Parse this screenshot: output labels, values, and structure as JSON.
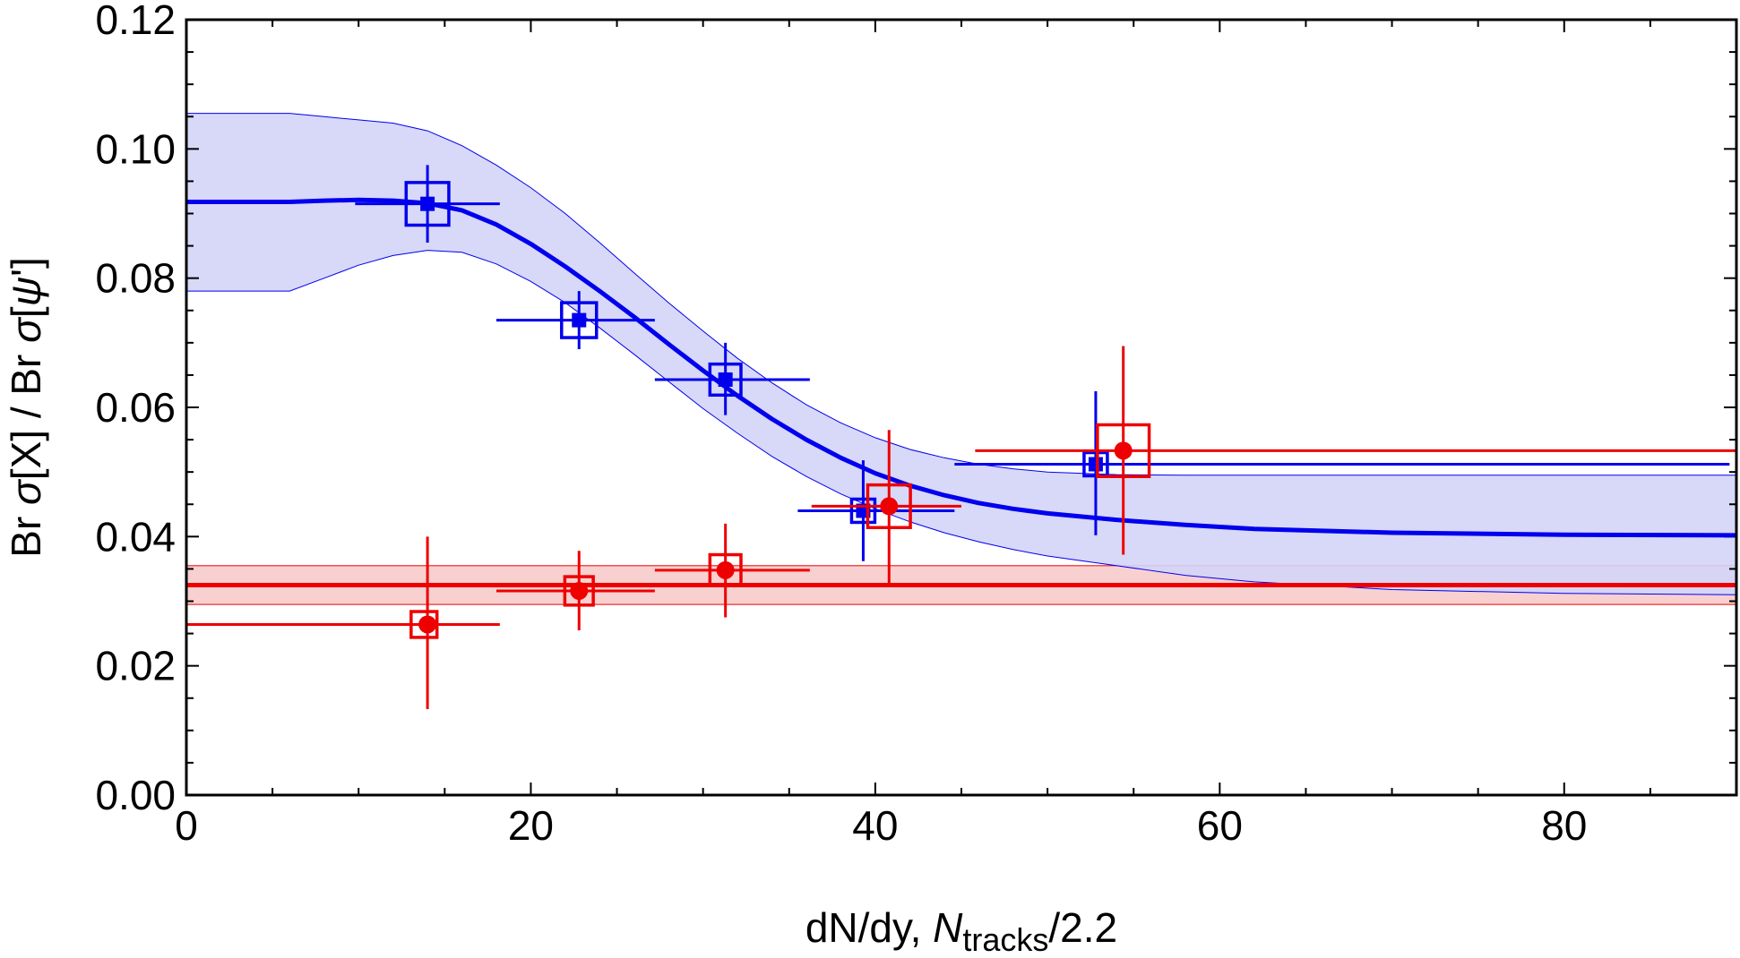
{
  "chart_data": {
    "type": "scatter",
    "title": "",
    "xlabel": {
      "prefix": "dN/dy, ",
      "var": "N",
      "sub": "tracks",
      "suffix": "/2.2"
    },
    "ylabel": {
      "part1": "Br ",
      "sigma1": "σ",
      "part2": "[X] / Br ",
      "sigma2": "σ",
      "part3": "[",
      "psi": "ψ",
      "part4": "']"
    },
    "xlim": [
      0,
      90
    ],
    "ylim": [
      0,
      0.12
    ],
    "x_ticks": [
      "0",
      "20",
      "40",
      "60",
      "80"
    ],
    "x_tick_values": [
      0,
      20,
      40,
      60,
      80
    ],
    "y_ticks": [
      "0.00",
      "0.02",
      "0.04",
      "0.06",
      "0.08",
      "0.10",
      "0.12"
    ],
    "y_tick_values": [
      0,
      0.02,
      0.04,
      0.06,
      0.08,
      0.1,
      0.12
    ],
    "grid": false,
    "legend": "none",
    "colors": {
      "blue": "#0000ee",
      "blue_band": "#d4d4f7",
      "red": "#ee0000",
      "red_band": "#f7c8c8"
    },
    "series": [
      {
        "color": "blue",
        "marker": "filled-square",
        "points": [
          {
            "x": 14.0,
            "y": 0.0915,
            "xlo": 9.8,
            "xhi": 18.2,
            "ylo": 0.0855,
            "yhi": 0.0975,
            "box_x": 14.0,
            "box_y": 0.0915,
            "box_dy": 0.0033
          },
          {
            "x": 22.8,
            "y": 0.0735,
            "xlo": 18.0,
            "xhi": 27.2,
            "ylo": 0.069,
            "yhi": 0.078,
            "box_x": 22.8,
            "box_y": 0.0735,
            "box_dy": 0.0027
          },
          {
            "x": 31.3,
            "y": 0.0643,
            "xlo": 27.2,
            "xhi": 36.2,
            "ylo": 0.0588,
            "yhi": 0.07,
            "box_x": 31.3,
            "box_y": 0.0643,
            "box_dy": 0.0024
          },
          {
            "x": 39.3,
            "y": 0.044,
            "xlo": 35.5,
            "xhi": 44.6,
            "ylo": 0.0362,
            "yhi": 0.0518,
            "box_x": 39.3,
            "box_y": 0.044,
            "box_dy": 0.0018
          },
          {
            "x": 52.8,
            "y": 0.0512,
            "xlo": 44.6,
            "xhi": 89.6,
            "ylo": 0.0402,
            "yhi": 0.0625,
            "box_x": 52.8,
            "box_y": 0.0512,
            "box_dy": 0.0018
          }
        ]
      },
      {
        "color": "red",
        "marker": "filled-circle",
        "points": [
          {
            "x": 14.0,
            "y": 0.0264,
            "xlo": 0.0,
            "xhi": 18.2,
            "ylo": 0.0133,
            "yhi": 0.04,
            "box_x": 13.8,
            "box_y": 0.0264,
            "box_dy": 0.002
          },
          {
            "x": 22.8,
            "y": 0.0316,
            "xlo": 18.0,
            "xhi": 27.2,
            "ylo": 0.0255,
            "yhi": 0.0378,
            "box_x": 22.8,
            "box_y": 0.0316,
            "box_dy": 0.0022
          },
          {
            "x": 31.3,
            "y": 0.0348,
            "xlo": 27.2,
            "xhi": 36.2,
            "ylo": 0.0275,
            "yhi": 0.042,
            "box_x": 31.3,
            "box_y": 0.0348,
            "box_dy": 0.0024
          },
          {
            "x": 40.8,
            "y": 0.0447,
            "xlo": 36.3,
            "xhi": 45.0,
            "ylo": 0.0325,
            "yhi": 0.0565,
            "box_x": 40.8,
            "box_y": 0.0447,
            "box_dy": 0.0033
          },
          {
            "x": 54.4,
            "y": 0.0533,
            "xlo": 45.8,
            "xhi": 90.0,
            "ylo": 0.0372,
            "yhi": 0.0695,
            "box_x": 54.4,
            "box_y": 0.0533,
            "box_dy": 0.004
          }
        ]
      }
    ],
    "blue_curve": {
      "x": [
        0,
        6,
        8,
        10,
        12,
        14,
        16,
        18,
        20,
        22,
        24,
        26,
        28,
        30,
        32,
        34,
        36,
        38,
        40,
        42,
        44,
        46,
        48,
        50,
        54,
        58,
        62,
        70,
        80,
        90
      ],
      "y": [
        0.0918,
        0.0918,
        0.092,
        0.0921,
        0.092,
        0.0916,
        0.0905,
        0.0883,
        0.0853,
        0.0818,
        0.078,
        0.074,
        0.0698,
        0.0657,
        0.0618,
        0.0582,
        0.055,
        0.0522,
        0.0498,
        0.0479,
        0.0464,
        0.0452,
        0.0443,
        0.0436,
        0.0426,
        0.0418,
        0.0412,
        0.0406,
        0.0403,
        0.0402
      ],
      "band_upper": [
        0.1055,
        0.1055,
        0.105,
        0.1045,
        0.104,
        0.1028,
        0.1005,
        0.0975,
        0.094,
        0.09,
        0.0855,
        0.0808,
        0.0762,
        0.0718,
        0.0676,
        0.0638,
        0.0604,
        0.0576,
        0.0553,
        0.0535,
        0.0522,
        0.0512,
        0.0505,
        0.05,
        0.0496,
        0.0495,
        0.0495,
        0.0495,
        0.0495,
        0.0495
      ],
      "band_lower": [
        0.078,
        0.078,
        0.08,
        0.082,
        0.0835,
        0.0843,
        0.084,
        0.0822,
        0.0795,
        0.0762,
        0.0723,
        0.0682,
        0.064,
        0.0598,
        0.056,
        0.0524,
        0.0493,
        0.0466,
        0.0443,
        0.0423,
        0.0406,
        0.0392,
        0.038,
        0.037,
        0.0355,
        0.034,
        0.033,
        0.0318,
        0.0312,
        0.031
      ]
    },
    "red_line": {
      "y": 0.0325,
      "band_lo": 0.0295,
      "band_hi": 0.0355,
      "x_from": 0,
      "x_to": 90
    }
  }
}
